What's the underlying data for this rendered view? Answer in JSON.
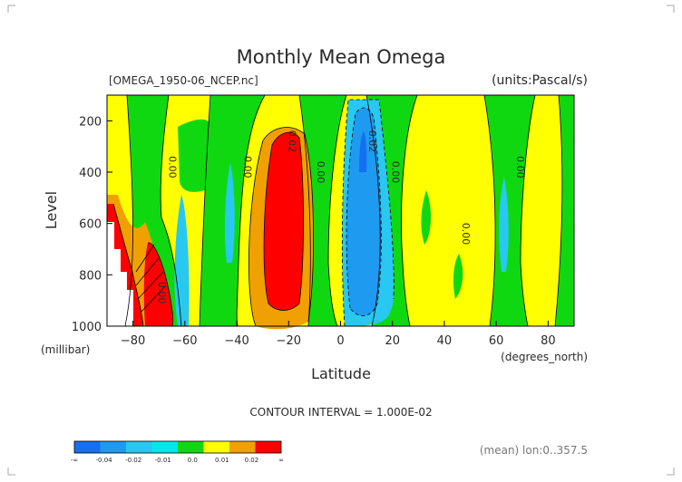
{
  "chart_data": {
    "type": "heatmap",
    "title": "Monthly Mean Omega",
    "source_label": "[OMEGA_1950-06_NCEP.nc]",
    "units_label": "(units:Pascal/s)",
    "xlabel": "Latitude",
    "x_units": "(degrees_north)",
    "ylabel": "Level",
    "y_units": "(millibar)",
    "x_ticks": [
      "-80",
      "-60",
      "-40",
      "-20",
      "0",
      "20",
      "40",
      "60",
      "80"
    ],
    "y_ticks": [
      "200",
      "400",
      "600",
      "800",
      "1000"
    ],
    "xlim": [
      -90,
      90
    ],
    "ylim": [
      1000,
      100
    ],
    "contour_interval_text": "CONTOUR INTERVAL = 1.000E-02",
    "footer_text": "(mean) lon:0..357.5",
    "contour_labels": [
      {
        "text": "0.00",
        "x": -66,
        "y": 380
      },
      {
        "text": "0.00",
        "x": -37,
        "y": 380
      },
      {
        "text": "0.02",
        "x": -20,
        "y": 280
      },
      {
        "text": "0.00",
        "x": -9,
        "y": 400
      },
      {
        "text": "0.02",
        "x": 11,
        "y": 280
      },
      {
        "text": "0.00",
        "x": 20,
        "y": 400
      },
      {
        "text": "0.00",
        "x": 47,
        "y": 640
      },
      {
        "text": "0.00",
        "x": 68,
        "y": 380
      },
      {
        "text": "0.00",
        "x": -70,
        "y": 870
      }
    ],
    "colorbar": {
      "labels": [
        "-∞",
        "-0.04",
        "-0.02",
        "-0.01",
        "0.0",
        "0.01",
        "0.02",
        "∞"
      ],
      "colors": [
        "#1470f0",
        "#1e9af0",
        "#28c8f0",
        "#00e8e8",
        "#10d810",
        "#ffff00",
        "#f0a000",
        "#ff0000"
      ]
    },
    "regions": [
      {
        "level": "red",
        "color": "#ff0000",
        "x": [
          -25,
          -14
        ],
        "y": [
          260,
          900
        ]
      },
      {
        "level": "orange",
        "color": "#f0a000",
        "x": [
          -29,
          -9
        ],
        "y": [
          200,
          960
        ]
      },
      {
        "level": "blue",
        "color": "#1470f0",
        "x": [
          7,
          10
        ],
        "y": [
          230,
          360
        ]
      },
      {
        "level": "cyan",
        "color": "#1e9af0",
        "x": [
          2,
          15
        ],
        "y": [
          160,
          940
        ]
      },
      {
        "level": "light-cyan",
        "color": "#28c8f0",
        "x": [
          -1,
          19
        ],
        "y": [
          100,
          1000
        ]
      },
      {
        "level": "cyan-small",
        "color": "#28c8f0",
        "x": [
          -65,
          -62
        ],
        "y": [
          480,
          1000
        ]
      },
      {
        "level": "cyan-small",
        "color": "#28c8f0",
        "x": [
          -42,
          -39
        ],
        "y": [
          400,
          620
        ]
      },
      {
        "level": "cyan-small",
        "color": "#28c8f0",
        "x": [
          78,
          81
        ],
        "y": [
          400,
          760
        ]
      }
    ]
  }
}
